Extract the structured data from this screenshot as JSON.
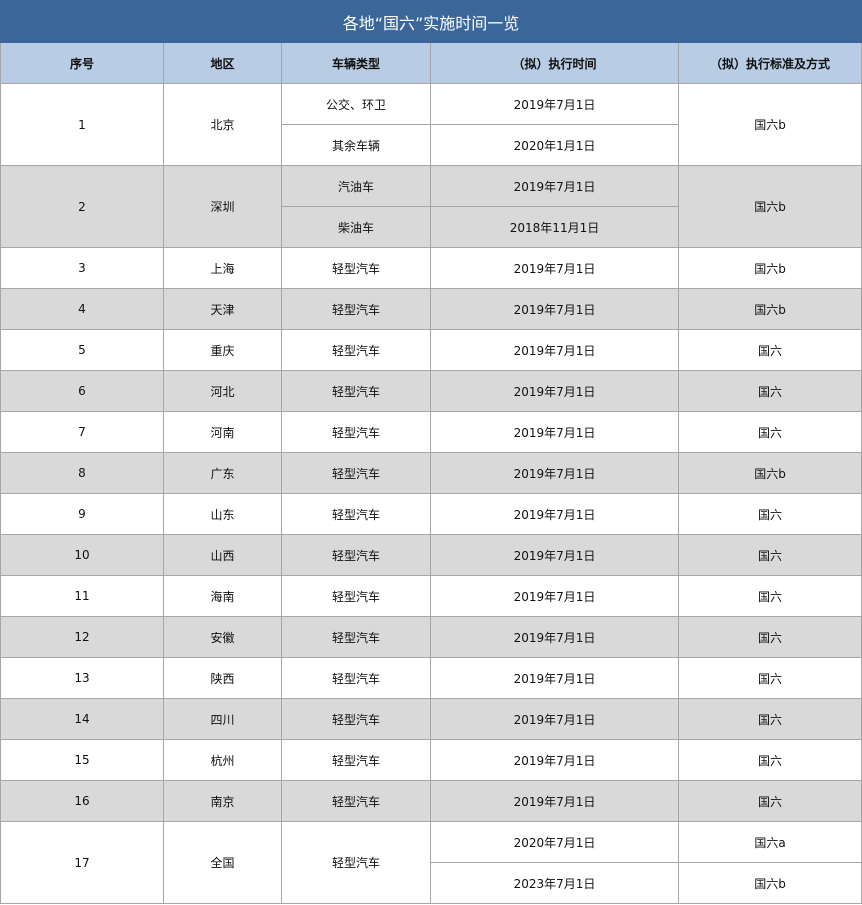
{
  "title": "各地“国六”实施时间一览",
  "headers": [
    "序号",
    "地区",
    "车辆类型",
    "（拟）执行时间",
    "（拟）执行标准及方式"
  ],
  "colors": {
    "title_bg": "#3a6699",
    "header_bg": "#b8cce4",
    "shade_bg": "#d9d9d9"
  },
  "rows": [
    {
      "no": "1",
      "region": "北京",
      "vehicle": [
        "公交、环卫",
        "其余车辆"
      ],
      "dates": [
        "2019年7月1日",
        "2020年1月1日"
      ],
      "standard": [
        "国六b"
      ]
    },
    {
      "no": "2",
      "region": "深圳",
      "vehicle": [
        "汽油车",
        "柴油车"
      ],
      "dates": [
        "2019年7月1日",
        "2018年11月1日"
      ],
      "standard": [
        "国六b"
      ]
    },
    {
      "no": "3",
      "region": "上海",
      "vehicle": [
        "轻型汽车"
      ],
      "dates": [
        "2019年7月1日"
      ],
      "standard": [
        "国六b"
      ]
    },
    {
      "no": "4",
      "region": "天津",
      "vehicle": [
        "轻型汽车"
      ],
      "dates": [
        "2019年7月1日"
      ],
      "standard": [
        "国六b"
      ]
    },
    {
      "no": "5",
      "region": "重庆",
      "vehicle": [
        "轻型汽车"
      ],
      "dates": [
        "2019年7月1日"
      ],
      "standard": [
        "国六"
      ]
    },
    {
      "no": "6",
      "region": "河北",
      "vehicle": [
        "轻型汽车"
      ],
      "dates": [
        "2019年7月1日"
      ],
      "standard": [
        "国六"
      ]
    },
    {
      "no": "7",
      "region": "河南",
      "vehicle": [
        "轻型汽车"
      ],
      "dates": [
        "2019年7月1日"
      ],
      "standard": [
        "国六"
      ]
    },
    {
      "no": "8",
      "region": "广东",
      "vehicle": [
        "轻型汽车"
      ],
      "dates": [
        "2019年7月1日"
      ],
      "standard": [
        "国六b"
      ]
    },
    {
      "no": "9",
      "region": "山东",
      "vehicle": [
        "轻型汽车"
      ],
      "dates": [
        "2019年7月1日"
      ],
      "standard": [
        "国六"
      ]
    },
    {
      "no": "10",
      "region": "山西",
      "vehicle": [
        "轻型汽车"
      ],
      "dates": [
        "2019年7月1日"
      ],
      "standard": [
        "国六"
      ]
    },
    {
      "no": "11",
      "region": "海南",
      "vehicle": [
        "轻型汽车"
      ],
      "dates": [
        "2019年7月1日"
      ],
      "standard": [
        "国六"
      ]
    },
    {
      "no": "12",
      "region": "安徽",
      "vehicle": [
        "轻型汽车"
      ],
      "dates": [
        "2019年7月1日"
      ],
      "standard": [
        "国六"
      ]
    },
    {
      "no": "13",
      "region": "陕西",
      "vehicle": [
        "轻型汽车"
      ],
      "dates": [
        "2019年7月1日"
      ],
      "standard": [
        "国六"
      ]
    },
    {
      "no": "14",
      "region": "四川",
      "vehicle": [
        "轻型汽车"
      ],
      "dates": [
        "2019年7月1日"
      ],
      "standard": [
        "国六"
      ]
    },
    {
      "no": "15",
      "region": "杭州",
      "vehicle": [
        "轻型汽车"
      ],
      "dates": [
        "2019年7月1日"
      ],
      "standard": [
        "国六"
      ]
    },
    {
      "no": "16",
      "region": "南京",
      "vehicle": [
        "轻型汽车"
      ],
      "dates": [
        "2019年7月1日"
      ],
      "standard": [
        "国六"
      ]
    },
    {
      "no": "17",
      "region": "全国",
      "vehicle": [
        "轻型汽车"
      ],
      "dates": [
        "2020年7月1日",
        "2023年7月1日"
      ],
      "standard": [
        "国六a",
        "国六b"
      ]
    }
  ]
}
